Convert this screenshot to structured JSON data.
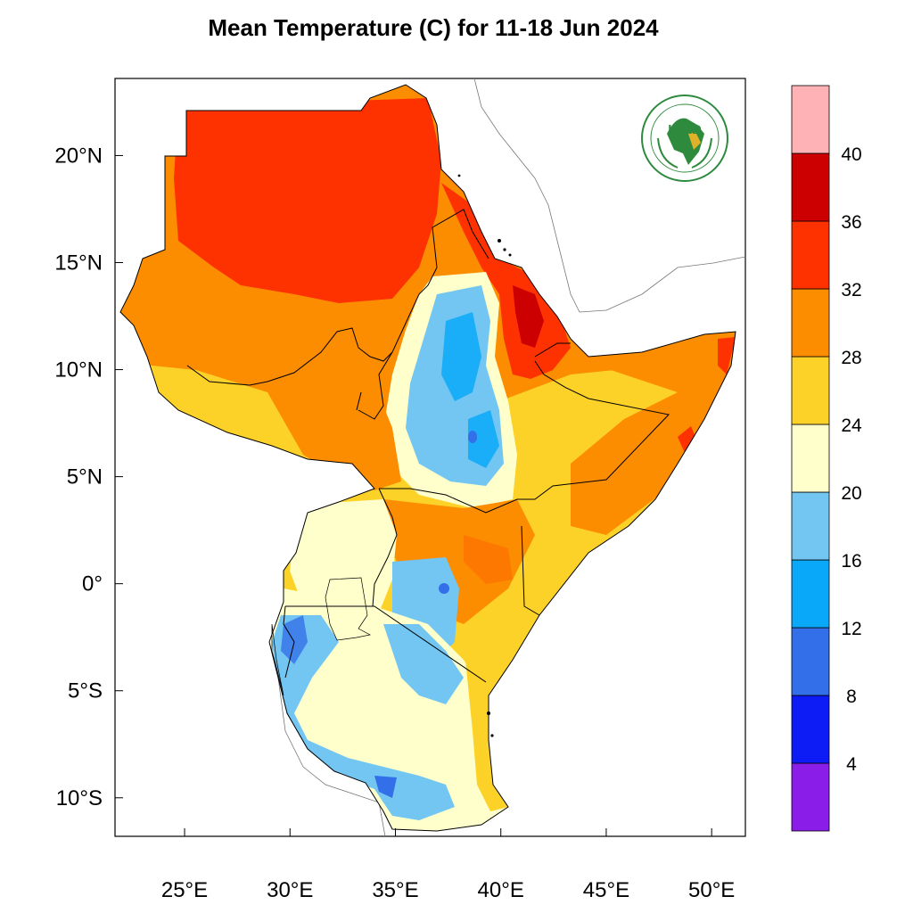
{
  "title": "Mean Temperature (C) for 11-18 Jun 2024",
  "map": {
    "lon_range": [
      21.7,
      51.6
    ],
    "lat_range": [
      -11.8,
      23.6
    ],
    "lon_ticks": [
      {
        "value": 25,
        "label": "25°E"
      },
      {
        "value": 30,
        "label": "30°E"
      },
      {
        "value": 35,
        "label": "35°E"
      },
      {
        "value": 40,
        "label": "40°E"
      },
      {
        "value": 45,
        "label": "45°E"
      },
      {
        "value": 50,
        "label": "50°E"
      }
    ],
    "lat_ticks": [
      {
        "value": 20,
        "label": "20°N"
      },
      {
        "value": 15,
        "label": "15°N"
      },
      {
        "value": 10,
        "label": "10°N"
      },
      {
        "value": 5,
        "label": "5°N"
      },
      {
        "value": 0,
        "label": "0°"
      },
      {
        "value": -5,
        "label": "5°S"
      },
      {
        "value": -10,
        "label": "10°S"
      }
    ]
  },
  "logo": {
    "text": "IGAD",
    "arc_top": "INTERGOVERNMENTAL AUTHORITY ON DEVELOPMENT",
    "arc_bottom": "AUTORITE INTERGOUVERNEMENTALE POUR LE DEVELOPPEMENT"
  },
  "legend": {
    "bins": [
      {
        "label": "",
        "color": "#8a1ee8"
      },
      {
        "label": "4",
        "color": "#0d1cf5"
      },
      {
        "label": "8",
        "color": "#336fe8"
      },
      {
        "label": "12",
        "color": "#0aa8f9"
      },
      {
        "label": "16",
        "color": "#72c6f1"
      },
      {
        "label": "20",
        "color": "#ffffcc"
      },
      {
        "label": "24",
        "color": "#fdd228"
      },
      {
        "label": "28",
        "color": "#fc8c00"
      },
      {
        "label": "32",
        "color": "#fe3200"
      },
      {
        "label": "36",
        "color": "#cc0000"
      },
      {
        "label": "40",
        "color": "#ffb2b5"
      }
    ]
  },
  "colors": {
    "very_hot": "#cc0000",
    "hot": "#fe3200",
    "warm": "#fc8c00",
    "mild": "#fdd228",
    "cool": "#ffffcc",
    "cold": "#72c6f1",
    "colder": "#0aa8f9",
    "coldest": "#336fe8",
    "igad_green": "#2e8b3e"
  }
}
